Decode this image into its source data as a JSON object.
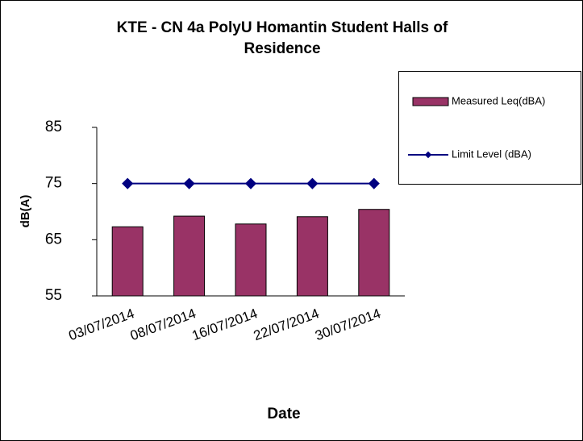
{
  "chart_data": {
    "type": "bar",
    "title": [
      "KTE - CN 4a  PolyU Homantin Student Halls of",
      "Residence"
    ],
    "x_label": "Date",
    "y_label": "dB(A)",
    "categories": [
      "03/07/2014",
      "08/07/2014",
      "16/07/2014",
      "22/07/2014",
      "30/07/2014"
    ],
    "series": [
      {
        "name": "Measured Leq(dBA)",
        "type": "bar",
        "color": "#993366",
        "values": [
          67.3,
          69.2,
          67.8,
          69.1,
          70.4
        ]
      },
      {
        "name": "Limit Level (dBA)",
        "type": "line",
        "color": "#000080",
        "values": [
          75,
          75,
          75,
          75,
          75
        ]
      }
    ],
    "ylim": [
      55,
      85
    ],
    "yticks": [
      55,
      65,
      75,
      85
    ],
    "grid": false,
    "legend": "right"
  }
}
